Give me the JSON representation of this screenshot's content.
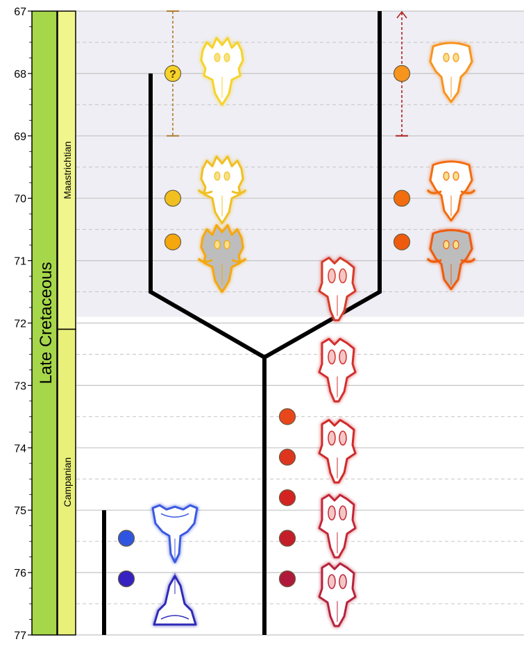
{
  "axis": {
    "ticks": [
      67,
      68,
      69,
      70,
      71,
      72,
      73,
      74,
      75,
      76,
      77
    ],
    "top_value": 67,
    "bottom_value": 77
  },
  "epoch": {
    "label": "Late Cretaceous",
    "color": "#a6d64a"
  },
  "stages": [
    {
      "label": "Maastrichtian",
      "from": 67,
      "to": 72.1,
      "color": "#f0f58c"
    },
    {
      "label": "Campanian",
      "from": 72.1,
      "to": 77,
      "color": "#e8f07a"
    }
  ],
  "shaded_interval": {
    "from": 67,
    "to": 71.9,
    "color": "#eeeef4"
  },
  "range_markers": [
    {
      "name": "uncertain-range",
      "from": 67,
      "to": 69,
      "style": "dashed-bars",
      "color": "#b07a30"
    },
    {
      "name": "open-range-upward",
      "from": 67,
      "to": 69,
      "style": "dashed-arrow",
      "color": "#b02020"
    }
  ],
  "occurrences": [
    {
      "age": 68.0,
      "lineage": "left-clade",
      "color": "#f6d32a",
      "glyph": "?"
    },
    {
      "age": 70.0,
      "lineage": "left-clade",
      "color": "#f0c020"
    },
    {
      "age": 70.7,
      "lineage": "left-clade",
      "color": "#f5a80e"
    },
    {
      "age": 68.0,
      "lineage": "right-clade",
      "color": "#f7941d"
    },
    {
      "age": 70.0,
      "lineage": "right-clade",
      "color": "#f26d0e"
    },
    {
      "age": 70.7,
      "lineage": "right-clade",
      "color": "#ee5b0f"
    },
    {
      "age": 73.5,
      "lineage": "stem",
      "color": "#e8471b"
    },
    {
      "age": 74.15,
      "lineage": "stem",
      "color": "#dd351e"
    },
    {
      "age": 74.8,
      "lineage": "stem",
      "color": "#d42422"
    },
    {
      "age": 75.45,
      "lineage": "stem",
      "color": "#c41e2a"
    },
    {
      "age": 76.1,
      "lineage": "stem",
      "color": "#b01a3a"
    },
    {
      "age": 75.45,
      "lineage": "outgroup",
      "color": "#2f55e0"
    },
    {
      "age": 76.1,
      "lineage": "outgroup",
      "color": "#3522c0"
    }
  ],
  "skulls": [
    {
      "age": 67.9,
      "col": "left",
      "glow": "#f6d32a",
      "fill": "#ffffff",
      "frill": "spiky-short",
      "flip": false
    },
    {
      "age": 69.8,
      "col": "left",
      "glow": "#f0c020",
      "fill": "#ffffff",
      "frill": "spiky-long-horns",
      "flip": false
    },
    {
      "age": 70.9,
      "col": "left",
      "glow": "#f5a80e",
      "fill": "#bdbdbd",
      "frill": "spiky-long-horns",
      "flip": false
    },
    {
      "age": 67.9,
      "col": "right",
      "glow": "#f7941d",
      "fill": "#ffffff",
      "frill": "smooth",
      "flip": false
    },
    {
      "age": 69.8,
      "col": "right",
      "glow": "#f26d0e",
      "fill": "#ffffff",
      "frill": "smooth-horns",
      "flip": false
    },
    {
      "age": 70.9,
      "col": "right",
      "glow": "#ee5b0f",
      "fill": "#bdbdbd",
      "frill": "smooth-horns",
      "flip": false
    },
    {
      "age": 71.4,
      "col": "stem",
      "glow": "#d73a2a",
      "fill": "#ffffff",
      "frill": "windowed",
      "flip": false
    },
    {
      "age": 72.7,
      "col": "stem",
      "glow": "#d42f2f",
      "fill": "#ffffff",
      "frill": "windowed",
      "flip": false
    },
    {
      "age": 74.0,
      "col": "stem",
      "glow": "#cf2a2a",
      "fill": "#ffffff",
      "frill": "windowed",
      "flip": false
    },
    {
      "age": 75.2,
      "col": "stem",
      "glow": "#c42838",
      "fill": "#ffffff",
      "frill": "windowed",
      "flip": false
    },
    {
      "age": 76.3,
      "col": "stem",
      "glow": "#b8243e",
      "fill": "#ffffff",
      "frill": "windowed",
      "flip": false
    },
    {
      "age": 75.3,
      "col": "outgroup",
      "glow": "#3a5ae0",
      "fill": "#ffffff",
      "frill": "wide-fringed",
      "flip": false
    },
    {
      "age": 76.5,
      "col": "outgroup",
      "glow": "#2d2ab8",
      "fill": "#ffffff",
      "frill": "wide-flat",
      "flip": true
    }
  ],
  "tree": {
    "left_branch": {
      "top_age": 68.0,
      "bottom_age": 71.5
    },
    "right_branch": {
      "top_age": 67.0,
      "bottom_age": 71.5
    },
    "node_age": 72.55,
    "stem_bottom_age": 77,
    "outgroup": {
      "top_age": 75.0,
      "bottom_age": 77
    }
  }
}
